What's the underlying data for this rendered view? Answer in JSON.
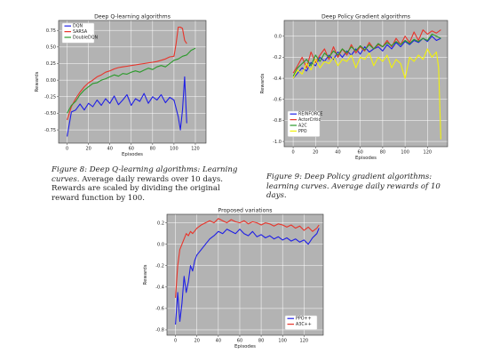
{
  "charts": [
    {
      "id": "chart1",
      "type": "line",
      "title": "Deep Q-learning algorithms",
      "xlabel": "Episodes",
      "ylabel": "Rewards",
      "xlim": [
        -8,
        130
      ],
      "ylim": [
        -0.95,
        0.9
      ],
      "xticks": [
        0,
        20,
        40,
        60,
        80,
        100,
        120
      ],
      "yticks": [
        -0.75,
        -0.5,
        -0.25,
        0.0,
        0.25,
        0.5,
        0.75
      ],
      "ytick_labels": [
        "-0.75",
        "-0.50",
        "-0.25",
        "0.00",
        "0.25",
        "0.50",
        "0.75"
      ],
      "grid": true,
      "legend_position": "top-left",
      "series": [
        {
          "name": "DQN",
          "color": "#1f1fe6",
          "x": [
            0,
            4,
            8,
            12,
            16,
            20,
            24,
            28,
            32,
            36,
            40,
            44,
            48,
            52,
            56,
            60,
            64,
            68,
            72,
            76,
            80,
            84,
            88,
            92,
            96,
            100,
            104,
            106,
            108,
            110,
            112
          ],
          "y": [
            -0.85,
            -0.48,
            -0.45,
            -0.36,
            -0.45,
            -0.35,
            -0.4,
            -0.3,
            -0.38,
            -0.28,
            -0.35,
            -0.24,
            -0.37,
            -0.3,
            -0.22,
            -0.38,
            -0.28,
            -0.32,
            -0.2,
            -0.35,
            -0.25,
            -0.3,
            -0.22,
            -0.34,
            -0.26,
            -0.3,
            -0.55,
            -0.75,
            -0.45,
            0.05,
            -0.65
          ]
        },
        {
          "name": "SARSA",
          "color": "#e8342a",
          "x": [
            0,
            4,
            8,
            12,
            16,
            20,
            24,
            28,
            32,
            36,
            40,
            44,
            48,
            52,
            56,
            60,
            64,
            68,
            72,
            76,
            80,
            84,
            88,
            92,
            96,
            100,
            102,
            104,
            106,
            108,
            110,
            112
          ],
          "y": [
            -0.6,
            -0.4,
            -0.28,
            -0.18,
            -0.1,
            -0.04,
            0.0,
            0.05,
            0.08,
            0.12,
            0.14,
            0.17,
            0.19,
            0.2,
            0.21,
            0.22,
            0.23,
            0.24,
            0.25,
            0.26,
            0.27,
            0.28,
            0.3,
            0.32,
            0.35,
            0.36,
            0.55,
            0.8,
            0.8,
            0.78,
            0.6,
            0.55
          ]
        },
        {
          "name": "DoubleDQN",
          "color": "#2a9a2a",
          "x": [
            0,
            4,
            8,
            12,
            16,
            20,
            24,
            28,
            32,
            36,
            40,
            44,
            48,
            52,
            56,
            60,
            64,
            68,
            72,
            76,
            80,
            84,
            88,
            92,
            96,
            100,
            104,
            108,
            112,
            116,
            120
          ],
          "y": [
            -0.5,
            -0.38,
            -0.32,
            -0.22,
            -0.15,
            -0.1,
            -0.05,
            -0.04,
            0.0,
            0.02,
            0.05,
            0.08,
            0.06,
            0.1,
            0.09,
            0.12,
            0.14,
            0.12,
            0.15,
            0.18,
            0.16,
            0.2,
            0.22,
            0.2,
            0.25,
            0.3,
            0.32,
            0.36,
            0.38,
            0.45,
            0.48
          ]
        }
      ]
    },
    {
      "id": "chart2",
      "type": "line",
      "title": "Deep Policy Gradient algorithms",
      "xlabel": "Episodes",
      "ylabel": "Rewards",
      "xlim": [
        -8,
        138
      ],
      "ylim": [
        -1.05,
        0.15
      ],
      "xticks": [
        0,
        20,
        40,
        60,
        80,
        100,
        120
      ],
      "yticks": [
        -1.0,
        -0.8,
        -0.6,
        -0.4,
        -0.2,
        0.0
      ],
      "ytick_labels": [
        "-1.0",
        "-0.8",
        "-0.6",
        "-0.4",
        "-0.2",
        "0.0"
      ],
      "grid": true,
      "legend_position": "bottom-left",
      "series": [
        {
          "name": "REINFORCE",
          "color": "#1f1fe6",
          "x": [
            0,
            4,
            8,
            12,
            16,
            20,
            24,
            28,
            32,
            36,
            40,
            44,
            48,
            52,
            56,
            60,
            64,
            68,
            72,
            76,
            80,
            84,
            88,
            92,
            96,
            100,
            104,
            108,
            112,
            116,
            120,
            124,
            128,
            132
          ],
          "y": [
            -0.4,
            -0.35,
            -0.3,
            -0.33,
            -0.25,
            -0.28,
            -0.2,
            -0.24,
            -0.18,
            -0.22,
            -0.15,
            -0.2,
            -0.14,
            -0.18,
            -0.12,
            -0.17,
            -0.1,
            -0.15,
            -0.12,
            -0.1,
            -0.14,
            -0.08,
            -0.12,
            -0.06,
            -0.1,
            -0.05,
            -0.08,
            -0.04,
            -0.06,
            -0.02,
            -0.05,
            0.0,
            -0.04,
            -0.02
          ]
        },
        {
          "name": "ActorCritic",
          "color": "#e8342a",
          "x": [
            0,
            4,
            8,
            12,
            16,
            20,
            24,
            28,
            32,
            36,
            40,
            44,
            48,
            52,
            56,
            60,
            64,
            68,
            72,
            76,
            80,
            84,
            88,
            92,
            96,
            100,
            104,
            108,
            112,
            116,
            120,
            124,
            128,
            132
          ],
          "y": [
            -0.35,
            -0.28,
            -0.2,
            -0.3,
            -0.15,
            -0.25,
            -0.18,
            -0.12,
            -0.22,
            -0.1,
            -0.2,
            -0.12,
            -0.18,
            -0.08,
            -0.16,
            -0.1,
            -0.14,
            -0.06,
            -0.12,
            -0.08,
            -0.1,
            -0.04,
            -0.1,
            -0.02,
            -0.08,
            0.0,
            -0.06,
            0.04,
            -0.04,
            0.06,
            0.02,
            0.05,
            0.03,
            0.06
          ]
        },
        {
          "name": "A2C",
          "color": "#2a9a2a",
          "x": [
            0,
            4,
            8,
            12,
            16,
            20,
            24,
            28,
            32,
            36,
            40,
            44,
            48,
            52,
            56,
            60,
            64,
            68,
            72,
            76,
            80,
            84,
            88,
            92,
            96,
            100,
            104,
            108,
            112,
            116,
            120,
            124,
            128,
            132
          ],
          "y": [
            -0.38,
            -0.3,
            -0.26,
            -0.22,
            -0.28,
            -0.18,
            -0.24,
            -0.16,
            -0.2,
            -0.14,
            -0.18,
            -0.12,
            -0.16,
            -0.1,
            -0.14,
            -0.09,
            -0.13,
            -0.08,
            -0.12,
            -0.07,
            -0.1,
            -0.06,
            -0.09,
            -0.05,
            -0.08,
            -0.04,
            -0.07,
            -0.03,
            -0.05,
            -0.02,
            -0.04,
            0.02,
            0.0,
            -0.02
          ]
        },
        {
          "name": "PPO",
          "color": "#f2f20a",
          "x": [
            0,
            4,
            8,
            12,
            16,
            20,
            24,
            28,
            32,
            36,
            40,
            44,
            48,
            52,
            56,
            60,
            64,
            68,
            72,
            76,
            80,
            84,
            88,
            92,
            96,
            100,
            104,
            108,
            112,
            116,
            120,
            124,
            128,
            130,
            132
          ],
          "y": [
            -0.4,
            -0.32,
            -0.36,
            -0.26,
            -0.32,
            -0.22,
            -0.3,
            -0.24,
            -0.26,
            -0.2,
            -0.28,
            -0.22,
            -0.24,
            -0.18,
            -0.3,
            -0.2,
            -0.22,
            -0.16,
            -0.28,
            -0.2,
            -0.24,
            -0.18,
            -0.3,
            -0.22,
            -0.26,
            -0.4,
            -0.2,
            -0.24,
            -0.18,
            -0.22,
            -0.12,
            -0.2,
            -0.15,
            -0.3,
            -0.98
          ]
        }
      ]
    },
    {
      "id": "chart3",
      "type": "line",
      "title": "Proposed variations",
      "xlabel": "Episodes",
      "ylabel": "Rewards",
      "xlim": [
        -8,
        138
      ],
      "ylim": [
        -0.85,
        0.28
      ],
      "xticks": [
        0,
        20,
        40,
        60,
        80,
        100,
        120
      ],
      "yticks": [
        -0.8,
        -0.6,
        -0.4,
        -0.2,
        0.0,
        0.2
      ],
      "ytick_labels": [
        "-0.8",
        "-0.6",
        "-0.4",
        "-0.2",
        "0.0",
        "0.2"
      ],
      "grid": true,
      "legend_position": "bottom-right",
      "series": [
        {
          "name": "PPO++",
          "color": "#1f1fe6",
          "x": [
            0,
            2,
            4,
            6,
            8,
            10,
            12,
            14,
            16,
            18,
            20,
            24,
            28,
            32,
            36,
            40,
            44,
            48,
            52,
            56,
            60,
            64,
            68,
            72,
            76,
            80,
            84,
            88,
            92,
            96,
            100,
            104,
            108,
            112,
            116,
            120,
            124,
            128,
            132,
            134
          ],
          "y": [
            -0.75,
            -0.45,
            -0.72,
            -0.55,
            -0.3,
            -0.45,
            -0.35,
            -0.2,
            -0.25,
            -0.15,
            -0.1,
            -0.05,
            0.0,
            0.05,
            0.08,
            0.12,
            0.1,
            0.14,
            0.12,
            0.1,
            0.14,
            0.1,
            0.08,
            0.12,
            0.07,
            0.09,
            0.06,
            0.08,
            0.05,
            0.07,
            0.04,
            0.06,
            0.03,
            0.05,
            0.02,
            0.04,
            0.0,
            0.06,
            0.1,
            0.15
          ]
        },
        {
          "name": "A3C++",
          "color": "#e8342a",
          "x": [
            0,
            2,
            4,
            6,
            8,
            10,
            12,
            14,
            16,
            20,
            24,
            28,
            32,
            36,
            40,
            44,
            48,
            52,
            56,
            60,
            64,
            68,
            72,
            76,
            80,
            84,
            88,
            92,
            96,
            100,
            104,
            108,
            112,
            116,
            120,
            124,
            128,
            132,
            134
          ],
          "y": [
            -0.5,
            -0.2,
            -0.05,
            0.0,
            0.05,
            0.1,
            0.08,
            0.12,
            0.1,
            0.15,
            0.18,
            0.2,
            0.22,
            0.2,
            0.24,
            0.22,
            0.2,
            0.23,
            0.21,
            0.2,
            0.22,
            0.19,
            0.21,
            0.2,
            0.18,
            0.2,
            0.19,
            0.17,
            0.19,
            0.18,
            0.16,
            0.18,
            0.15,
            0.17,
            0.13,
            0.16,
            0.12,
            0.15,
            0.18
          ]
        }
      ]
    }
  ],
  "captions": [
    {
      "lead": "Figure 8: Deep Q-learning algorithms: Learning curves.",
      "rest": " Average daily rewards over 10 days. Rewards are scaled by dividing the original reward function by 100."
    },
    {
      "lead": "Figure 9: Deep Policy gradient algorithms: learning curves. Average daily rewards of 10 days.",
      "rest": ""
    }
  ]
}
